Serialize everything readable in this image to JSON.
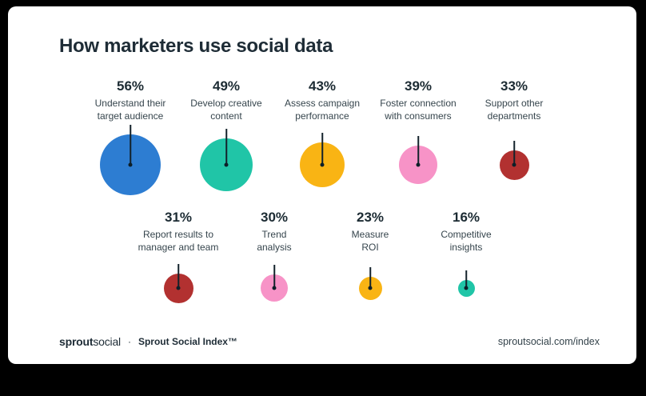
{
  "chart_data": {
    "type": "bubble",
    "title": "How marketers use social data",
    "legend": false,
    "items": [
      {
        "pct": "56%",
        "value": 56,
        "label": "Understand their\ntarget audience",
        "color": "#2d7dd2",
        "diameter": 76
      },
      {
        "pct": "49%",
        "value": 49,
        "label": "Develop creative\ncontent",
        "color": "#20c5a7",
        "diameter": 66
      },
      {
        "pct": "43%",
        "value": 43,
        "label": "Assess campaign\nperformance",
        "color": "#f9b414",
        "diameter": 56
      },
      {
        "pct": "39%",
        "value": 39,
        "label": "Foster connection\nwith consumers",
        "color": "#f793c7",
        "diameter": 48
      },
      {
        "pct": "33%",
        "value": 33,
        "label": "Support other\ndepartments",
        "color": "#b23130",
        "diameter": 37
      },
      {
        "pct": "31%",
        "value": 31,
        "label": "Report results to\nmanager and team",
        "color": "#b23130",
        "diameter": 37
      },
      {
        "pct": "30%",
        "value": 30,
        "label": "Trend\nanalysis",
        "color": "#f793c7",
        "diameter": 34
      },
      {
        "pct": "23%",
        "value": 23,
        "label": "Measure\nROI",
        "color": "#f9b414",
        "diameter": 29
      },
      {
        "pct": "16%",
        "value": 16,
        "label": "Competitive\ninsights",
        "color": "#20c5a7",
        "diameter": 21
      }
    ],
    "rows": [
      [
        0,
        1,
        2,
        3,
        4
      ],
      [
        5,
        6,
        7,
        8
      ]
    ]
  },
  "footer": {
    "brand_bold": "sprout",
    "brand_light": "social",
    "separator": "·",
    "index_label": "Sprout Social Index™",
    "url": "sproutsocial.com/index"
  }
}
